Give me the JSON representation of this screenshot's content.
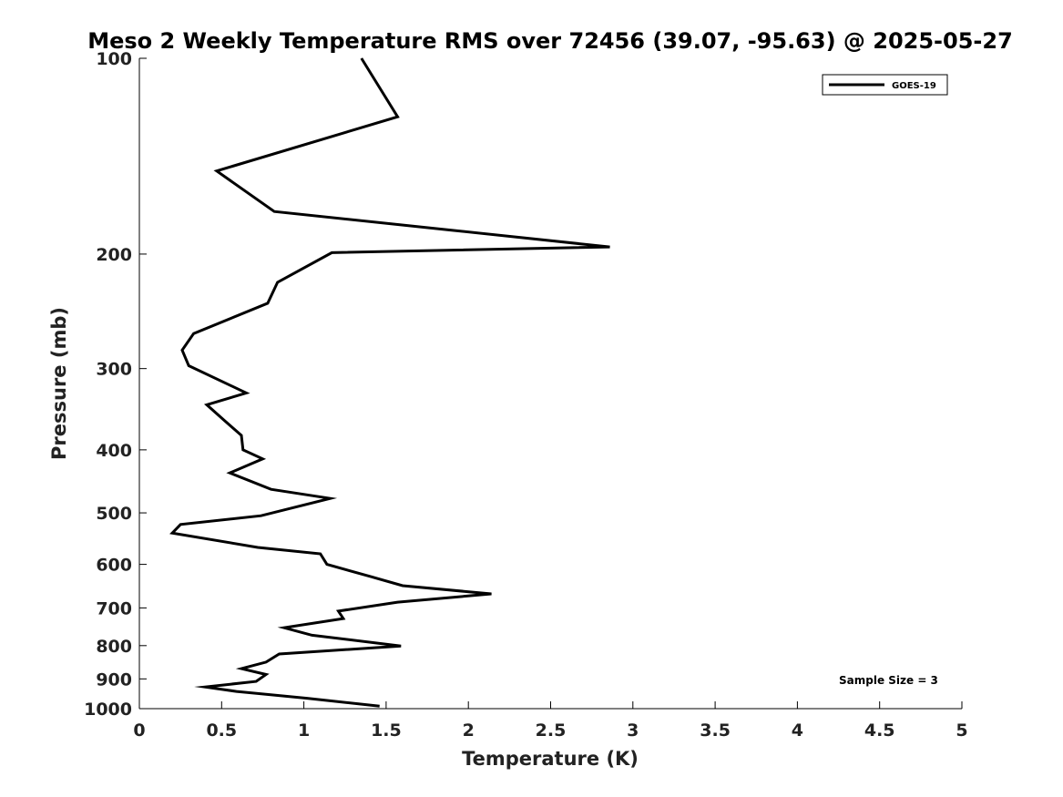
{
  "chart_data": {
    "type": "line",
    "title": "Meso 2 Weekly Temperature RMS over 72456 (39.07, -95.63) @ 2025-05-27",
    "xlabel": "Temperature (K)",
    "ylabel": "Pressure (mb)",
    "xlim": [
      0,
      5
    ],
    "ylim": [
      1000,
      100
    ],
    "y_scale": "log",
    "x_ticks": [
      "0",
      "0.5",
      "1",
      "1.5",
      "2",
      "2.5",
      "3",
      "3.5",
      "4",
      "4.5",
      "5"
    ],
    "y_ticks": [
      "100",
      "200",
      "300",
      "400",
      "500",
      "600",
      "700",
      "800",
      "900",
      "1000"
    ],
    "grid": false,
    "legend": {
      "placement": "top-right",
      "entries": [
        "GOES-19"
      ]
    },
    "annotation": "Sample Size = 3",
    "series": [
      {
        "name": "GOES-19",
        "color": "#000000",
        "x": [
          1.35,
          1.57,
          0.47,
          0.82,
          2.86,
          1.17,
          0.84,
          0.78,
          0.33,
          0.26,
          0.3,
          0.65,
          0.41,
          0.52,
          0.62,
          0.63,
          0.75,
          0.55,
          0.8,
          1.16,
          0.74,
          0.25,
          0.2,
          0.72,
          1.1,
          1.14,
          1.41,
          1.6,
          2.14,
          1.57,
          1.21,
          1.24,
          0.88,
          1.05,
          1.59,
          0.85,
          0.77,
          0.62,
          0.77,
          0.71,
          0.4,
          0.59,
          1.02,
          1.46
        ],
        "y": [
          100,
          123,
          149,
          172,
          195,
          199,
          221,
          238,
          265,
          281,
          297,
          327,
          341,
          361,
          380,
          400,
          413,
          434,
          460,
          475,
          505,
          521,
          537,
          565,
          578,
          600,
          627,
          647,
          666,
          686,
          708,
          727,
          751,
          771,
          801,
          824,
          848,
          868,
          886,
          908,
          926,
          941,
          964,
          991
        ]
      }
    ]
  }
}
